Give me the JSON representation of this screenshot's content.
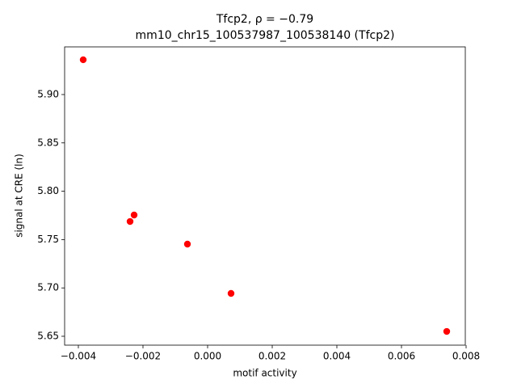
{
  "chart_data": {
    "type": "scatter",
    "title": "Tfcp2, ρ = −0.79",
    "subtitle": "mm10_chr15_100537987_100538140 (Tfcp2)",
    "x_label": "motif activity",
    "y_label": "signal at CRE (ln)",
    "x": [
      -0.00385,
      -0.0024,
      -0.002275,
      -0.000625,
      0.000725,
      0.0074
    ],
    "values": [
      5.936,
      5.7687,
      5.7754,
      5.7453,
      5.6943,
      5.655
    ],
    "color": "#ff0000",
    "xlim": [
      -0.004425,
      0.007975
    ],
    "ylim": [
      5.6408,
      5.9493
    ],
    "xticks": [
      {
        "value": -0.004,
        "label": "−0.004"
      },
      {
        "value": -0.002,
        "label": "−0.002"
      },
      {
        "value": 0,
        "label": "0.000"
      },
      {
        "value": 0.002,
        "label": "0.002"
      },
      {
        "value": 0.004,
        "label": "0.004"
      },
      {
        "value": 0.006,
        "label": "0.006"
      },
      {
        "value": 0.008,
        "label": "0.008"
      }
    ],
    "yticks": [
      5.65,
      {
        "value": 5.7,
        "label": "5.70"
      },
      5.75,
      {
        "value": 5.8,
        "label": "5.80"
      },
      5.85,
      {
        "value": 5.9,
        "label": "5.90"
      }
    ]
  }
}
